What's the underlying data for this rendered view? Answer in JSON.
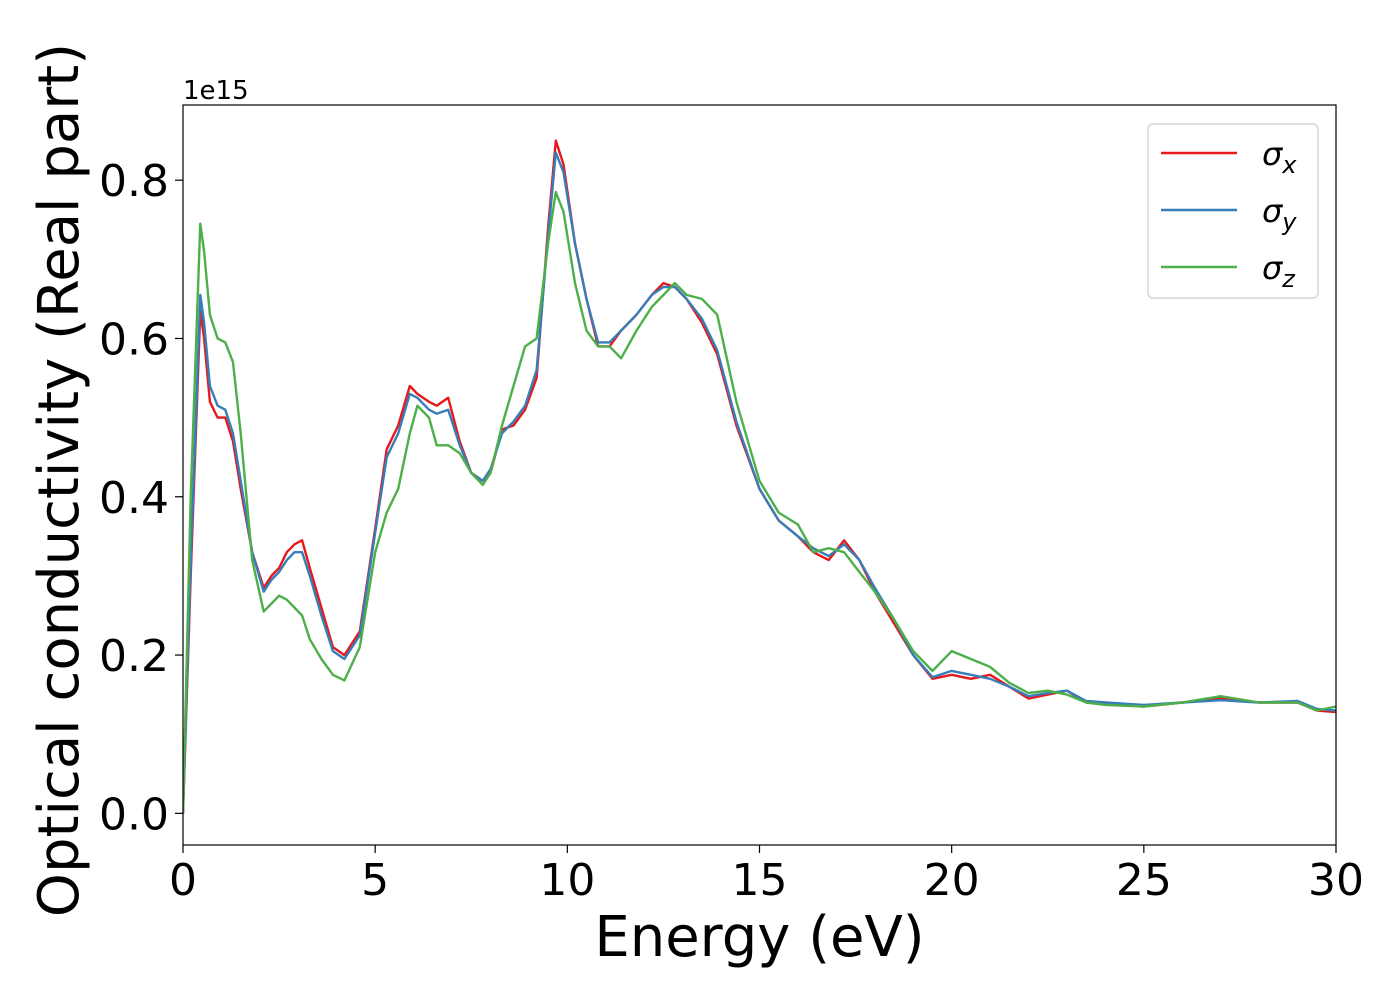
{
  "chart_data": {
    "type": "line",
    "xlabel": "Energy (eV)",
    "ylabel": "Optical conductivity (Real part)",
    "y_offset_label": "1e15",
    "xlim": [
      0,
      30
    ],
    "ylim": [
      -0.04,
      0.895
    ],
    "xticks": [
      0,
      5,
      10,
      15,
      20,
      25,
      30
    ],
    "xtick_labels": [
      "0",
      "5",
      "10",
      "15",
      "20",
      "25",
      "30"
    ],
    "yticks": [
      0.0,
      0.2,
      0.4,
      0.6,
      0.8
    ],
    "ytick_labels": [
      "0.0",
      "0.2",
      "0.4",
      "0.6",
      "0.8"
    ],
    "grid": false,
    "legend_position": "top-right",
    "series": [
      {
        "name": "σx",
        "base": "σ",
        "sub": "x",
        "color": "#e41a1c",
        "x": [
          0,
          0.2,
          0.45,
          0.55,
          0.7,
          0.9,
          1.1,
          1.3,
          1.5,
          1.8,
          2.1,
          2.3,
          2.5,
          2.7,
          2.9,
          3.1,
          3.3,
          3.6,
          3.9,
          4.2,
          4.6,
          5.0,
          5.3,
          5.6,
          5.9,
          6.1,
          6.4,
          6.6,
          6.9,
          7.2,
          7.5,
          7.8,
          8.0,
          8.3,
          8.6,
          8.9,
          9.2,
          9.5,
          9.7,
          9.9,
          10.2,
          10.5,
          10.8,
          11.1,
          11.4,
          11.8,
          12.2,
          12.5,
          12.8,
          13.1,
          13.5,
          13.9,
          14.4,
          15.0,
          15.5,
          16.0,
          16.4,
          16.8,
          17.2,
          17.6,
          18.0,
          18.5,
          19.0,
          19.5,
          20.0,
          20.5,
          21.0,
          21.5,
          22.0,
          22.5,
          23.0,
          23.5,
          24.0,
          25.0,
          26.0,
          27.0,
          28.0,
          29.0,
          29.5,
          30.0
        ],
        "y": [
          0.0,
          0.3,
          0.635,
          0.6,
          0.52,
          0.5,
          0.5,
          0.47,
          0.41,
          0.33,
          0.285,
          0.3,
          0.31,
          0.33,
          0.34,
          0.345,
          0.31,
          0.26,
          0.21,
          0.2,
          0.23,
          0.36,
          0.46,
          0.49,
          0.54,
          0.53,
          0.52,
          0.515,
          0.525,
          0.47,
          0.43,
          0.42,
          0.43,
          0.485,
          0.49,
          0.51,
          0.55,
          0.74,
          0.85,
          0.82,
          0.72,
          0.65,
          0.59,
          0.59,
          0.61,
          0.63,
          0.655,
          0.67,
          0.665,
          0.65,
          0.62,
          0.58,
          0.49,
          0.41,
          0.37,
          0.35,
          0.33,
          0.32,
          0.345,
          0.32,
          0.28,
          0.24,
          0.2,
          0.17,
          0.175,
          0.17,
          0.175,
          0.16,
          0.145,
          0.15,
          0.155,
          0.14,
          0.14,
          0.135,
          0.14,
          0.145,
          0.14,
          0.14,
          0.13,
          0.128
        ]
      },
      {
        "name": "σy",
        "base": "σ",
        "sub": "y",
        "color": "#377eb8",
        "x": [
          0,
          0.2,
          0.45,
          0.55,
          0.7,
          0.9,
          1.1,
          1.3,
          1.5,
          1.8,
          2.1,
          2.3,
          2.5,
          2.7,
          2.9,
          3.1,
          3.3,
          3.6,
          3.9,
          4.2,
          4.6,
          5.0,
          5.3,
          5.6,
          5.9,
          6.1,
          6.4,
          6.6,
          6.9,
          7.2,
          7.5,
          7.8,
          8.0,
          8.3,
          8.6,
          8.9,
          9.2,
          9.5,
          9.7,
          9.9,
          10.2,
          10.5,
          10.8,
          11.1,
          11.4,
          11.8,
          12.2,
          12.5,
          12.8,
          13.1,
          13.5,
          13.9,
          14.4,
          15.0,
          15.5,
          16.0,
          16.4,
          16.8,
          17.2,
          17.6,
          18.0,
          18.5,
          19.0,
          19.5,
          20.0,
          20.5,
          21.0,
          21.5,
          22.0,
          22.5,
          23.0,
          23.5,
          24.0,
          25.0,
          26.0,
          27.0,
          28.0,
          29.0,
          29.5,
          30.0
        ],
        "y": [
          0.0,
          0.32,
          0.655,
          0.62,
          0.54,
          0.515,
          0.51,
          0.48,
          0.42,
          0.33,
          0.28,
          0.295,
          0.305,
          0.32,
          0.33,
          0.33,
          0.3,
          0.25,
          0.205,
          0.195,
          0.225,
          0.355,
          0.45,
          0.48,
          0.53,
          0.525,
          0.51,
          0.505,
          0.51,
          0.465,
          0.43,
          0.42,
          0.435,
          0.48,
          0.495,
          0.515,
          0.56,
          0.73,
          0.835,
          0.81,
          0.72,
          0.65,
          0.595,
          0.595,
          0.61,
          0.63,
          0.655,
          0.665,
          0.665,
          0.65,
          0.625,
          0.585,
          0.495,
          0.41,
          0.37,
          0.35,
          0.335,
          0.325,
          0.34,
          0.32,
          0.285,
          0.245,
          0.2,
          0.172,
          0.18,
          0.175,
          0.17,
          0.16,
          0.148,
          0.152,
          0.155,
          0.142,
          0.14,
          0.137,
          0.14,
          0.143,
          0.14,
          0.142,
          0.132,
          0.13
        ]
      },
      {
        "name": "σz",
        "base": "σ",
        "sub": "z",
        "color": "#4daf4a",
        "x": [
          0,
          0.2,
          0.45,
          0.55,
          0.7,
          0.9,
          1.1,
          1.3,
          1.5,
          1.8,
          2.1,
          2.3,
          2.5,
          2.7,
          2.9,
          3.1,
          3.3,
          3.6,
          3.9,
          4.2,
          4.6,
          5.0,
          5.3,
          5.6,
          5.9,
          6.1,
          6.4,
          6.6,
          6.9,
          7.2,
          7.5,
          7.8,
          8.0,
          8.3,
          8.6,
          8.9,
          9.2,
          9.5,
          9.7,
          9.9,
          10.2,
          10.5,
          10.8,
          11.1,
          11.4,
          11.8,
          12.2,
          12.5,
          12.8,
          13.1,
          13.5,
          13.9,
          14.4,
          15.0,
          15.5,
          16.0,
          16.4,
          16.8,
          17.2,
          17.6,
          18.0,
          18.5,
          19.0,
          19.5,
          20.0,
          20.5,
          21.0,
          21.5,
          22.0,
          22.5,
          23.0,
          23.5,
          24.0,
          25.0,
          26.0,
          27.0,
          28.0,
          29.0,
          29.5,
          30.0
        ],
        "y": [
          0.0,
          0.4,
          0.745,
          0.71,
          0.63,
          0.6,
          0.595,
          0.57,
          0.48,
          0.32,
          0.255,
          0.265,
          0.275,
          0.27,
          0.26,
          0.25,
          0.22,
          0.195,
          0.175,
          0.168,
          0.21,
          0.33,
          0.38,
          0.41,
          0.48,
          0.515,
          0.5,
          0.465,
          0.465,
          0.455,
          0.43,
          0.415,
          0.43,
          0.49,
          0.54,
          0.59,
          0.6,
          0.72,
          0.785,
          0.76,
          0.67,
          0.61,
          0.59,
          0.59,
          0.575,
          0.61,
          0.64,
          0.655,
          0.67,
          0.655,
          0.65,
          0.63,
          0.52,
          0.42,
          0.38,
          0.365,
          0.33,
          0.335,
          0.33,
          0.305,
          0.28,
          0.245,
          0.205,
          0.18,
          0.205,
          0.195,
          0.185,
          0.165,
          0.152,
          0.155,
          0.15,
          0.14,
          0.137,
          0.135,
          0.14,
          0.148,
          0.14,
          0.14,
          0.13,
          0.135
        ]
      }
    ]
  }
}
